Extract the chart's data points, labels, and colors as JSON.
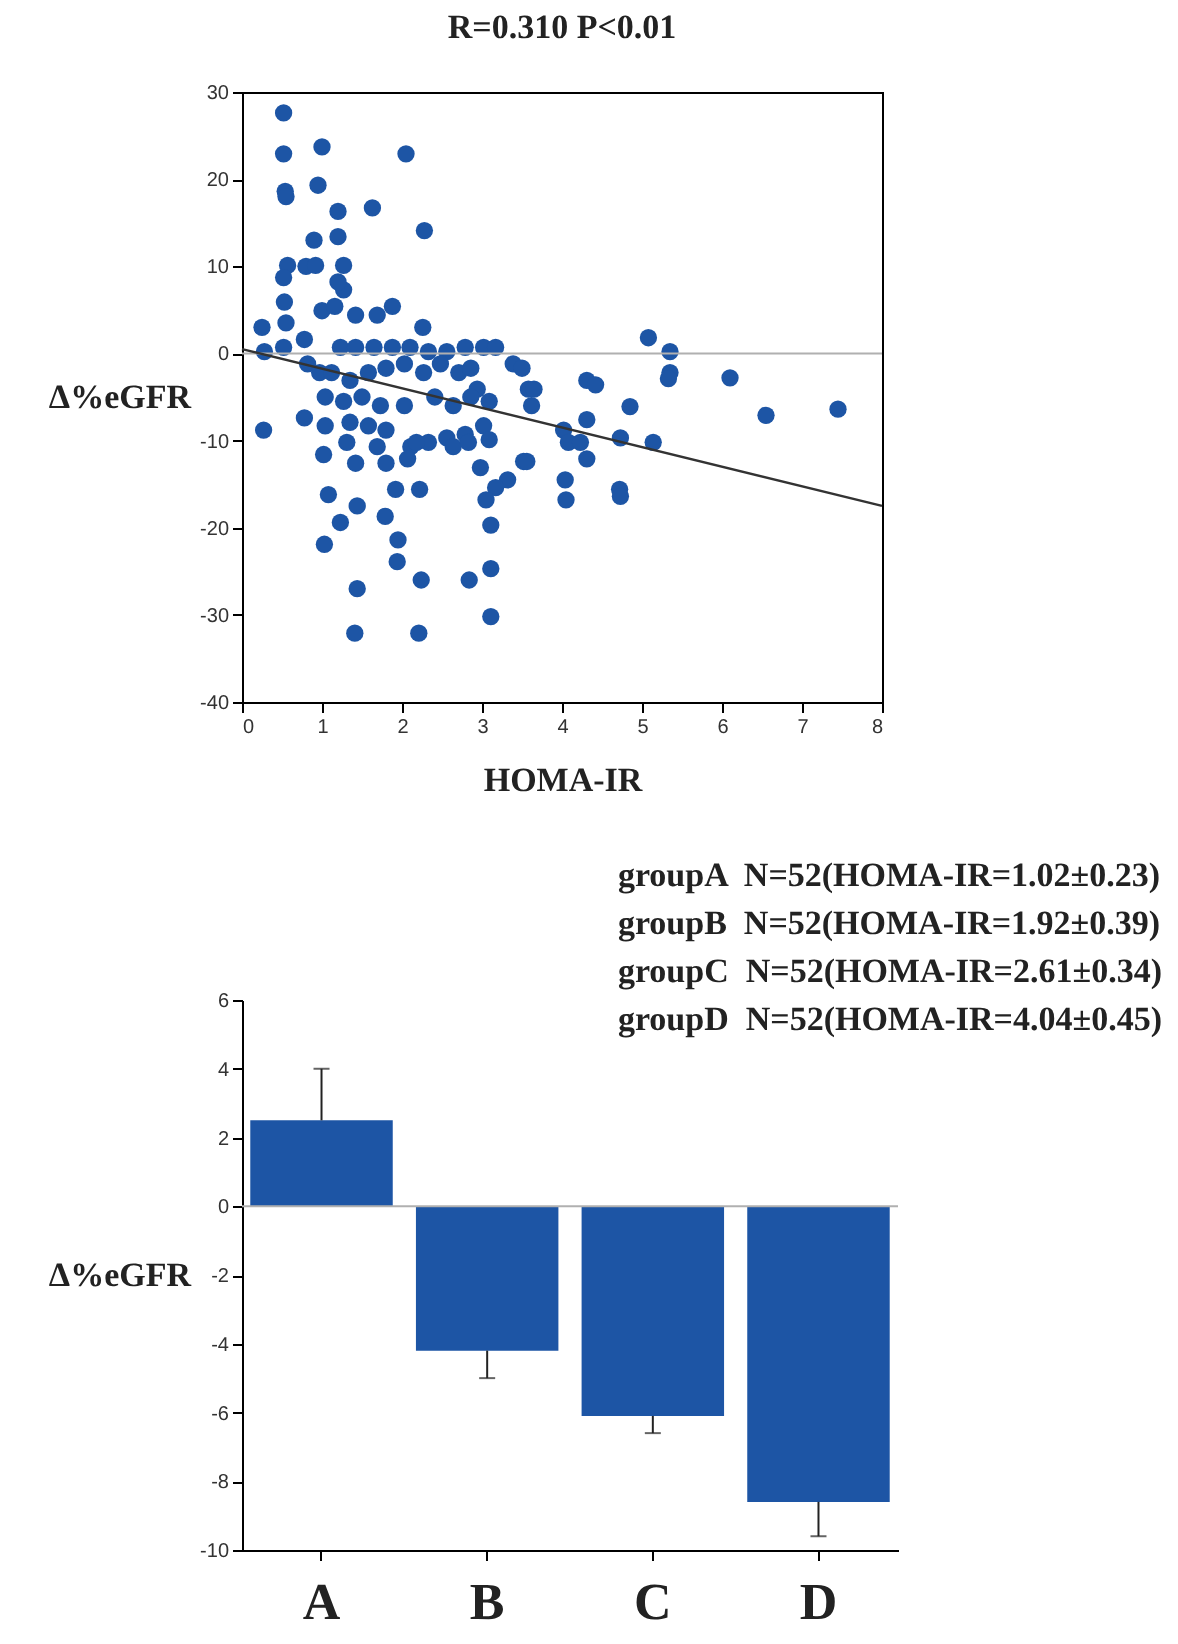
{
  "chart_data": [
    {
      "type": "scatter",
      "title": "R=0.310 P<0.01",
      "xlabel": "HOMA-IR",
      "ylabel": "Δ%eGFR",
      "xlim": [
        0,
        8
      ],
      "xticks": [
        0,
        1,
        2,
        3,
        4,
        5,
        6,
        7,
        8
      ],
      "ylim": [
        -40,
        30
      ],
      "yticks": [
        -40,
        -30,
        -20,
        -10,
        0,
        10,
        20,
        30
      ],
      "ref_lines": [
        {
          "axis": "y",
          "value": 0,
          "color": "#b0b0b0"
        }
      ],
      "series": [
        {
          "type": "scatter",
          "marker": "circle",
          "color": "#1d55a5",
          "x": [
            0.52,
            0.52,
            1.0,
            2.05,
            0.54,
            0.55,
            0.95,
            1.63,
            1.2,
            2.28,
            1.2,
            0.9,
            0.57,
            0.52,
            0.8,
            0.92,
            1.27,
            1.27,
            1.2,
            0.53,
            0.55,
            1.0,
            1.16,
            1.42,
            1.69,
            1.88,
            0.25,
            0.28,
            0.52,
            0.78,
            0.82,
            0.97,
            2.26,
            1.23,
            1.42,
            1.65,
            1.88,
            2.1,
            2.33,
            2.56,
            2.79,
            3.02,
            3.17,
            1.12,
            1.35,
            1.58,
            1.8,
            2.03,
            2.27,
            2.48,
            2.71,
            2.86,
            2.94,
            3.39,
            1.04,
            1.27,
            1.5,
            1.73,
            2.03,
            2.41,
            2.64,
            2.86,
            3.09,
            3.58,
            3.62,
            0.78,
            0.27,
            1.04,
            1.35,
            1.58,
            1.8,
            2.11,
            2.33,
            2.56,
            2.79,
            3.02,
            1.31,
            1.42,
            1.69,
            1.8,
            2.07,
            2.18,
            2.64,
            2.83,
            3.09,
            1.02,
            2.98,
            3.52,
            1.08,
            1.44,
            1.92,
            2.22,
            3.32,
            3.17,
            3.05,
            1.03,
            1.23,
            1.79,
            1.95,
            1.94,
            3.11,
            1.44,
            2.24,
            2.84,
            3.11,
            1.41,
            2.21,
            3.11,
            3.5,
            3.65,
            3.56,
            4.31,
            4.42,
            5.08,
            5.35,
            5.35,
            5.33,
            6.1,
            6.55,
            7.45,
            4.85,
            4.31,
            4.02,
            4.08,
            4.23,
            4.31,
            4.73,
            5.14,
            4.04,
            4.05,
            4.72,
            4.73
          ],
          "values": [
            27.6,
            22.9,
            23.7,
            22.9,
            18.6,
            18,
            19.3,
            16.7,
            16.3,
            14.1,
            13.4,
            13,
            10.1,
            8.7,
            10,
            10.1,
            10.1,
            7.3,
            8.2,
            5.9,
            3.5,
            4.9,
            5.4,
            4.4,
            4.4,
            5.4,
            3,
            0.2,
            0.7,
            1.6,
            -1.2,
            -2.2,
            3,
            0.7,
            0.7,
            0.7,
            0.7,
            0.7,
            0.2,
            0.2,
            0.7,
            0.7,
            0.7,
            -2.2,
            -3.1,
            -2.2,
            -1.7,
            -1.2,
            -2.2,
            -1.2,
            -2.2,
            -1.7,
            -4.1,
            -1.2,
            -5,
            -5.5,
            -5,
            -6,
            -6,
            -5,
            -6,
            -5,
            -5.5,
            -4.1,
            -6,
            -7.4,
            -8.8,
            -8.3,
            -7.9,
            -8.3,
            -8.8,
            -10.7,
            -10.2,
            -9.7,
            -9.3,
            -8.3,
            -10.2,
            -12.6,
            -10.7,
            -12.6,
            -12.1,
            -10.2,
            -10.7,
            -10.2,
            -9.9,
            -11.6,
            -13.1,
            -12.4,
            -16.2,
            -17.5,
            -15.6,
            -15.6,
            -14.5,
            -15.4,
            -16.8,
            -21.9,
            -19.4,
            -18.7,
            -21.4,
            -23.9,
            -19.7,
            -27,
            -26,
            -26,
            -24.7,
            -32.1,
            -32.1,
            -30.2,
            -1.7,
            -4.1,
            -12.4,
            -3.1,
            -3.6,
            1.8,
            0.2,
            -2.2,
            -2.9,
            -2.8,
            -7.1,
            -6.4,
            -6.1,
            -7.6,
            -8.8,
            -10.2,
            -10.2,
            -12.1,
            -9.7,
            -10.2,
            -14.5,
            -16.8,
            -15.6,
            -16.4
          ]
        },
        {
          "type": "line",
          "color": "#333333",
          "x": [
            0,
            8
          ],
          "values": [
            0.5,
            -17.5
          ]
        }
      ]
    },
    {
      "type": "bar",
      "ylabel": "Δ%eGFR",
      "categories": [
        "A",
        "B",
        "C",
        "D"
      ],
      "values": [
        2.5,
        -4.2,
        -6.1,
        -8.6
      ],
      "errors": [
        [
          2.5,
          4.0
        ],
        [
          -5.0,
          -4.2
        ],
        [
          -6.6,
          -6.1
        ],
        [
          -9.6,
          -8.6
        ]
      ],
      "color": "#1d55a5",
      "ylim": [
        -10,
        6
      ],
      "yticks": [
        -10,
        -8,
        -6,
        -4,
        -2,
        0,
        2,
        4,
        6
      ],
      "ref_lines": [
        {
          "axis": "y",
          "value": 0,
          "color": "#b0b0b0"
        }
      ],
      "annotations": [
        "groupA  N=52(HOMA-IR=1.02±0.23)",
        "groupB  N=52(HOMA-IR=1.92±0.39)",
        "groupC  N=52(HOMA-IR=2.61±0.34)",
        "groupD  N=52(HOMA-IR=4.04±0.45)"
      ]
    }
  ]
}
